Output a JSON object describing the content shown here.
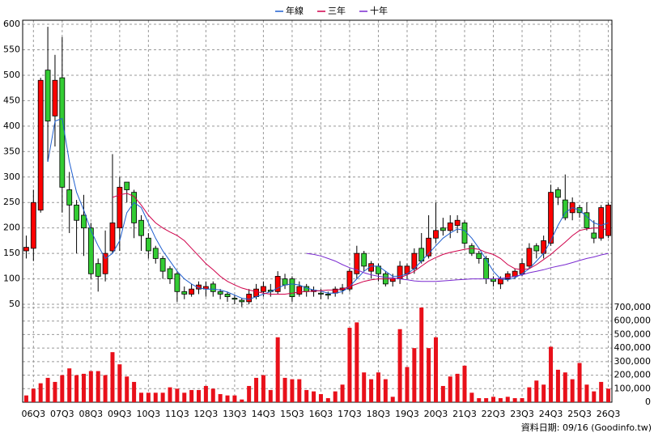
{
  "chart_data": {
    "type": "candlestick",
    "categories": [
      null,
      "06Q3",
      null,
      null,
      null,
      "07Q3",
      null,
      null,
      null,
      "08Q3",
      null,
      null,
      null,
      "09Q3",
      null,
      null,
      null,
      "10Q3",
      null,
      null,
      null,
      "11Q3",
      null,
      null,
      null,
      "12Q3",
      null,
      null,
      null,
      "13Q3",
      null,
      null,
      null,
      "14Q3",
      null,
      null,
      null,
      "15Q3",
      null,
      null,
      null,
      "16Q3",
      null,
      null,
      null,
      "17Q3",
      null,
      null,
      null,
      "18Q3",
      null,
      null,
      null,
      "19Q3",
      null,
      null,
      null,
      "20Q3",
      null,
      null,
      null,
      "21Q3",
      null,
      null,
      null,
      "22Q3",
      null,
      null,
      null,
      "23Q3",
      null,
      null,
      null,
      "24Q3",
      null,
      null,
      null,
      "25Q3",
      null,
      null,
      null,
      "26Q3"
    ],
    "open": [
      155,
      160,
      235,
      510,
      420,
      495,
      275,
      245,
      225,
      200,
      130,
      110,
      155,
      200,
      290,
      270,
      215,
      180,
      160,
      140,
      120,
      110,
      75,
      70,
      80,
      80,
      90,
      75,
      70,
      62,
      58,
      55,
      65,
      75,
      78,
      75,
      100,
      100,
      70,
      85,
      75,
      72,
      70,
      72,
      78,
      80,
      110,
      150,
      115,
      125,
      110,
      95,
      100,
      110,
      120,
      160,
      145,
      180,
      200,
      195,
      205,
      210,
      165,
      150,
      140,
      100,
      90,
      100,
      105,
      110,
      125,
      165,
      150,
      170,
      275,
      255,
      230,
      240,
      230,
      190,
      180,
      185
    ],
    "high": [
      185,
      275,
      495,
      595,
      540,
      575,
      310,
      255,
      265,
      210,
      140,
      195,
      345,
      300,
      290,
      275,
      225,
      190,
      165,
      145,
      125,
      115,
      85,
      90,
      95,
      95,
      95,
      80,
      75,
      68,
      62,
      80,
      90,
      95,
      90,
      115,
      110,
      105,
      95,
      90,
      85,
      80,
      75,
      85,
      90,
      120,
      165,
      155,
      135,
      130,
      115,
      110,
      135,
      130,
      160,
      190,
      225,
      250,
      220,
      225,
      225,
      215,
      170,
      155,
      145,
      105,
      105,
      115,
      120,
      140,
      170,
      170,
      185,
      285,
      280,
      305,
      260,
      245,
      250,
      215,
      245,
      250
    ],
    "low": [
      140,
      135,
      230,
      330,
      360,
      230,
      190,
      150,
      145,
      100,
      75,
      95,
      150,
      155,
      250,
      180,
      155,
      140,
      130,
      100,
      90,
      55,
      60,
      65,
      70,
      65,
      65,
      60,
      55,
      50,
      45,
      50,
      60,
      65,
      65,
      70,
      80,
      55,
      65,
      65,
      65,
      60,
      60,
      65,
      70,
      75,
      100,
      115,
      100,
      95,
      85,
      85,
      90,
      100,
      110,
      130,
      140,
      170,
      185,
      180,
      190,
      160,
      145,
      130,
      90,
      85,
      80,
      95,
      100,
      105,
      120,
      140,
      140,
      165,
      245,
      215,
      215,
      220,
      195,
      170,
      175,
      180
    ],
    "close": [
      162,
      250,
      490,
      410,
      490,
      280,
      245,
      215,
      200,
      110,
      105,
      150,
      210,
      280,
      275,
      210,
      185,
      155,
      140,
      115,
      100,
      75,
      70,
      80,
      88,
      85,
      75,
      70,
      65,
      60,
      55,
      70,
      80,
      85,
      75,
      105,
      88,
      65,
      85,
      75,
      78,
      70,
      68,
      80,
      82,
      115,
      150,
      125,
      130,
      110,
      90,
      100,
      125,
      125,
      150,
      135,
      180,
      195,
      195,
      210,
      215,
      170,
      150,
      140,
      100,
      95,
      100,
      110,
      115,
      130,
      160,
      155,
      175,
      270,
      260,
      220,
      250,
      230,
      200,
      180,
      240,
      245
    ],
    "up_color": "#ff0000",
    "down_color": "#33cc33",
    "lines": [
      {
        "name": "年線",
        "color": "#1f5fd0",
        "values": [
          null,
          null,
          null,
          330,
          410,
          415,
          330,
          270,
          235,
          195,
          165,
          140,
          150,
          175,
          230,
          250,
          240,
          210,
          180,
          155,
          135,
          115,
          100,
          90,
          82,
          80,
          80,
          78,
          74,
          68,
          62,
          60,
          65,
          70,
          75,
          82,
          88,
          90,
          88,
          82,
          78,
          76,
          72,
          72,
          75,
          85,
          100,
          115,
          125,
          125,
          115,
          105,
          105,
          110,
          120,
          135,
          150,
          165,
          180,
          190,
          198,
          195,
          180,
          160,
          138,
          115,
          100,
          98,
          102,
          110,
          120,
          135,
          150,
          175,
          205,
          230,
          240,
          235,
          222,
          210,
          205,
          210
        ]
      },
      {
        "name": "三年",
        "color": "#d0004a",
        "values": [
          null,
          null,
          null,
          null,
          null,
          null,
          null,
          null,
          null,
          null,
          null,
          null,
          260,
          265,
          268,
          262,
          245,
          225,
          210,
          200,
          192,
          185,
          175,
          160,
          145,
          130,
          118,
          105,
          95,
          88,
          82,
          78,
          75,
          72,
          70,
          70,
          70,
          72,
          74,
          75,
          76,
          77,
          78,
          78,
          80,
          85,
          90,
          95,
          98,
          100,
          100,
          100,
          102,
          108,
          115,
          125,
          135,
          142,
          148,
          152,
          155,
          158,
          160,
          158,
          152,
          148,
          140,
          128,
          120,
          118,
          120,
          128,
          138,
          148,
          160,
          172,
          185,
          195,
          198,
          200,
          200,
          195
        ]
      },
      {
        "name": "十年",
        "color": "#7a2ad0",
        "values": [
          null,
          null,
          null,
          null,
          null,
          null,
          null,
          null,
          null,
          null,
          null,
          null,
          null,
          null,
          null,
          null,
          null,
          null,
          null,
          null,
          null,
          null,
          null,
          null,
          null,
          null,
          null,
          null,
          null,
          null,
          null,
          null,
          null,
          null,
          null,
          null,
          null,
          null,
          null,
          150,
          148,
          145,
          140,
          135,
          128,
          122,
          118,
          112,
          108,
          105,
          103,
          102,
          100,
          98,
          96,
          95,
          95,
          95,
          96,
          97,
          98,
          99,
          100,
          100,
          100,
          100,
          101,
          102,
          105,
          108,
          112,
          115,
          118,
          122,
          125,
          128,
          132,
          136,
          140,
          143,
          147,
          150
        ]
      }
    ],
    "volume": {
      "color": "#e8101a",
      "values": [
        50000,
        100000,
        140000,
        180000,
        150000,
        200000,
        250000,
        200000,
        210000,
        230000,
        230000,
        200000,
        370000,
        280000,
        190000,
        150000,
        70000,
        70000,
        70000,
        70000,
        110000,
        100000,
        70000,
        90000,
        90000,
        120000,
        100000,
        60000,
        50000,
        50000,
        20000,
        120000,
        180000,
        200000,
        90000,
        480000,
        180000,
        170000,
        170000,
        90000,
        80000,
        60000,
        30000,
        80000,
        130000,
        550000,
        590000,
        220000,
        170000,
        220000,
        170000,
        40000,
        540000,
        260000,
        400000,
        700000,
        400000,
        480000,
        120000,
        190000,
        210000,
        270000,
        70000,
        30000,
        30000,
        40000,
        30000,
        40000,
        30000,
        30000,
        110000,
        160000,
        130000,
        410000,
        240000,
        220000,
        170000,
        290000,
        130000,
        80000,
        150000,
        100000
      ]
    },
    "ylim": [
      31,
      608
    ],
    "yticks": [
      50,
      100,
      150,
      200,
      250,
      300,
      350,
      400,
      450,
      500,
      550,
      600
    ],
    "y2lim": [
      0,
      700000
    ],
    "y2ticks": [
      0,
      {
        "value": 100000,
        "label": "100,000"
      },
      {
        "value": 200000,
        "label": "200,000"
      },
      {
        "value": 300000,
        "label": "300,000"
      },
      {
        "value": 400000,
        "label": "400,000"
      },
      {
        "value": 500000,
        "label": "500,000"
      },
      {
        "value": 600000,
        "label": "600,000"
      },
      {
        "value": 700000,
        "label": "700,000"
      }
    ],
    "grid": true,
    "note": "資料日期: 09/16 (Goodinfo.tw)"
  }
}
